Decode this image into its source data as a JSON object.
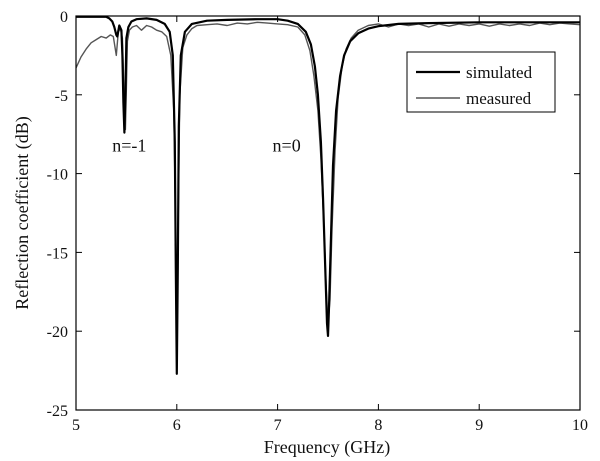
{
  "chart_data": {
    "type": "line",
    "title": "",
    "xlabel": "Frequency (GHz)",
    "ylabel": "Reflection coefficient (dB)",
    "xlim": [
      5,
      10
    ],
    "ylim": [
      -25,
      0
    ],
    "xticks": [
      "5",
      "6",
      "7",
      "8",
      "9",
      "10"
    ],
    "yticks": [
      "0",
      "-5",
      "-10",
      "-15",
      "-20",
      "-25"
    ],
    "grid": false,
    "legend_position": "top-right",
    "annotations": [
      {
        "text": "n=-1",
        "x": 5.36,
        "y": -8.6
      },
      {
        "text": "n=0",
        "x": 6.95,
        "y": -8.6
      }
    ],
    "series": [
      {
        "name": "simulated",
        "color": "#000000",
        "x": [
          5.0,
          5.3,
          5.33,
          5.36,
          5.38,
          5.4,
          5.41,
          5.43,
          5.45,
          5.46,
          5.47,
          5.48,
          5.49,
          5.5,
          5.52,
          5.55,
          5.6,
          5.7,
          5.8,
          5.88,
          5.93,
          5.96,
          5.98,
          5.99,
          6.0,
          6.01,
          6.02,
          6.04,
          6.08,
          6.15,
          6.3,
          6.5,
          6.8,
          7.0,
          7.1,
          7.2,
          7.28,
          7.33,
          7.37,
          7.4,
          7.43,
          7.45,
          7.47,
          7.49,
          7.5,
          7.51,
          7.53,
          7.55,
          7.58,
          7.62,
          7.66,
          7.72,
          7.8,
          7.9,
          8.0,
          8.2,
          8.5,
          9.0,
          9.5,
          10.0
        ],
        "y": [
          -0.05,
          -0.05,
          -0.15,
          -0.35,
          -0.7,
          -1.2,
          -1.3,
          -0.6,
          -0.9,
          -2.5,
          -5.5,
          -7.4,
          -5.0,
          -1.4,
          -0.7,
          -0.35,
          -0.2,
          -0.15,
          -0.25,
          -0.5,
          -1.0,
          -2.5,
          -8.0,
          -16.0,
          -22.7,
          -16.0,
          -7.0,
          -2.5,
          -1.0,
          -0.5,
          -0.3,
          -0.25,
          -0.2,
          -0.2,
          -0.3,
          -0.5,
          -1.0,
          -1.8,
          -3.2,
          -5.0,
          -8.0,
          -11.5,
          -15.5,
          -19.5,
          -20.3,
          -18.5,
          -14.0,
          -9.5,
          -6.0,
          -3.8,
          -2.5,
          -1.6,
          -1.1,
          -0.8,
          -0.65,
          -0.5,
          -0.45,
          -0.4,
          -0.4,
          -0.4
        ]
      },
      {
        "name": "measured",
        "color": "#555555",
        "x": [
          5.0,
          5.05,
          5.1,
          5.15,
          5.2,
          5.25,
          5.3,
          5.34,
          5.37,
          5.4,
          5.42,
          5.44,
          5.46,
          5.47,
          5.48,
          5.49,
          5.5,
          5.51,
          5.53,
          5.56,
          5.6,
          5.65,
          5.7,
          5.75,
          5.8,
          5.85,
          5.9,
          5.94,
          5.97,
          5.99,
          6.0,
          6.01,
          6.03,
          6.06,
          6.1,
          6.15,
          6.2,
          6.3,
          6.4,
          6.5,
          6.6,
          6.7,
          6.8,
          6.9,
          7.0,
          7.1,
          7.2,
          7.27,
          7.32,
          7.36,
          7.4,
          7.43,
          7.46,
          7.48,
          7.5,
          7.52,
          7.54,
          7.57,
          7.6,
          7.64,
          7.68,
          7.73,
          7.8,
          7.9,
          8.0,
          8.1,
          8.2,
          8.3,
          8.4,
          8.5,
          8.6,
          8.7,
          8.8,
          8.9,
          9.0,
          9.1,
          9.2,
          9.3,
          9.4,
          9.5,
          9.6,
          9.7,
          9.8,
          9.9,
          10.0
        ],
        "y": [
          -3.3,
          -2.6,
          -2.1,
          -1.7,
          -1.5,
          -1.3,
          -1.4,
          -1.2,
          -1.3,
          -2.5,
          -1.0,
          -0.8,
          -1.4,
          -3.5,
          -6.5,
          -7.2,
          -4.5,
          -1.6,
          -0.9,
          -0.7,
          -0.6,
          -0.9,
          -0.6,
          -0.7,
          -0.9,
          -1.0,
          -1.3,
          -2.5,
          -6.0,
          -14.0,
          -22.5,
          -15.0,
          -5.0,
          -2.0,
          -1.2,
          -0.8,
          -0.6,
          -0.55,
          -0.5,
          -0.6,
          -0.45,
          -0.5,
          -0.4,
          -0.45,
          -0.5,
          -0.55,
          -0.7,
          -1.2,
          -2.2,
          -3.8,
          -6.0,
          -9.0,
          -13.5,
          -17.0,
          -19.5,
          -18.0,
          -13.5,
          -8.5,
          -5.2,
          -3.2,
          -2.1,
          -1.4,
          -0.9,
          -0.6,
          -0.5,
          -0.7,
          -0.5,
          -0.6,
          -0.5,
          -0.7,
          -0.5,
          -0.65,
          -0.5,
          -0.6,
          -0.5,
          -0.65,
          -0.5,
          -0.6,
          -0.5,
          -0.6,
          -0.45,
          -0.55,
          -0.45,
          -0.5,
          -0.55
        ]
      }
    ]
  }
}
